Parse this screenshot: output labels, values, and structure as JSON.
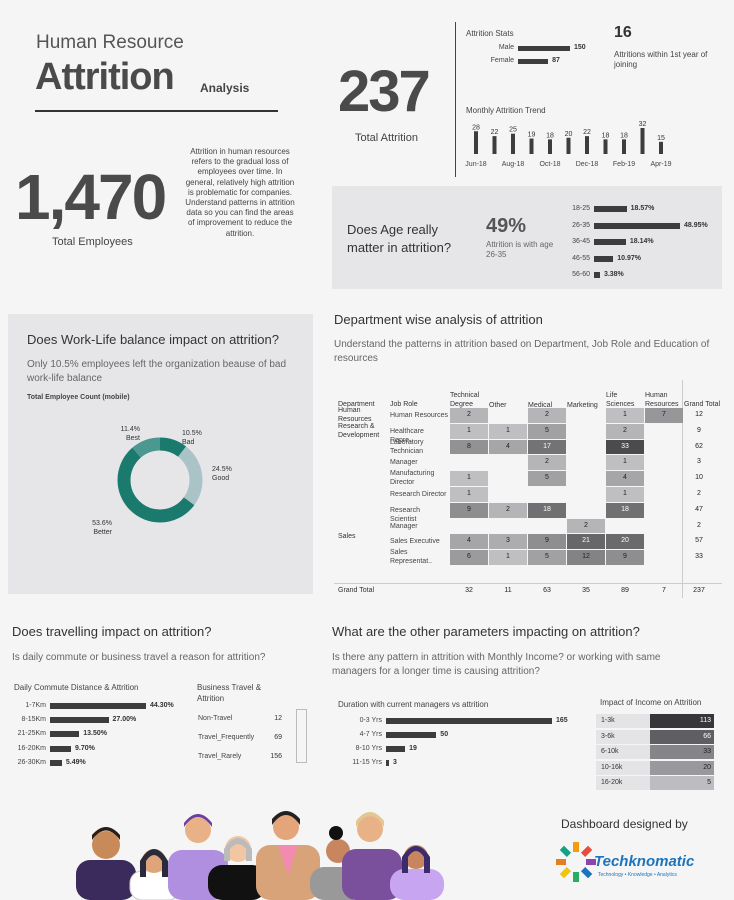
{
  "header": {
    "line1": "Human Resource",
    "line2": "Attrition",
    "line3": "Analysis"
  },
  "kpi": {
    "total_attrition_value": "237",
    "total_attrition_label": "Total Attrition",
    "total_employees_value": "1,470",
    "total_employees_label": "Total Employees",
    "first_year_value": "16",
    "first_year_label": "Attritions within 1st year of joining"
  },
  "intro": {
    "text": "Attrition in human resources refers to the gradual loss of employees over time. In general, relatively high attrition is problematic for companies. Understand patterns in attrition data so you can find the areas of improvement to reduce the attrition."
  },
  "age_panel": {
    "question": "Does Age really matter in attrition?",
    "pct": "49%",
    "pct_caption": "Attrition is with age 26-35"
  },
  "wlb": {
    "title": "Does Work-Life balance impact on attrition?",
    "subtitle": "Only 10.5% employees left the organization beause of bad work-life balance",
    "chart_caption": "Total Employee Count (mobile)"
  },
  "dept": {
    "title": "Department wise analysis of attrition",
    "subtitle": "Understand the patterns in attrition based on Department, Job Role and Education of resources",
    "col_department": "Department",
    "col_jobrole": "Job Role",
    "edu_headers": [
      "Technical Degree",
      "Other",
      "Medical",
      "Marketing",
      "Life Sciences",
      "Human Resources"
    ],
    "grand_total_label": "Grand Total",
    "departments": [
      {
        "name": "Human Resources",
        "row": 0
      },
      {
        "name": "Research & Development",
        "row": 1
      },
      {
        "name": "Sales",
        "row": 8
      }
    ],
    "rows": [
      {
        "role": "Human Resources",
        "cells": [
          2,
          null,
          2,
          null,
          1,
          7
        ],
        "total": 12
      },
      {
        "role": "Healthcare Repre..",
        "cells": [
          1,
          1,
          5,
          null,
          2,
          null
        ],
        "total": 9
      },
      {
        "role": "Laboratory Technician",
        "cells": [
          8,
          4,
          17,
          null,
          33,
          null
        ],
        "total": 62
      },
      {
        "role": "Manager",
        "cells": [
          null,
          null,
          2,
          null,
          1,
          null
        ],
        "total": 3
      },
      {
        "role": "Manufacturing Director",
        "cells": [
          1,
          null,
          5,
          null,
          4,
          null
        ],
        "total": 10
      },
      {
        "role": "Research Director",
        "cells": [
          1,
          null,
          null,
          null,
          1,
          null
        ],
        "total": 2
      },
      {
        "role": "Research Scientist",
        "cells": [
          9,
          2,
          18,
          null,
          18,
          null
        ],
        "total": 47
      },
      {
        "role": "Manager",
        "cells": [
          null,
          null,
          null,
          2,
          null,
          null
        ],
        "total": 2
      },
      {
        "role": "Sales Executive",
        "cells": [
          4,
          3,
          9,
          21,
          20,
          null
        ],
        "total": 57
      },
      {
        "role": "Sales Representat..",
        "cells": [
          6,
          1,
          5,
          12,
          9,
          null
        ],
        "total": 33
      }
    ],
    "grand_totals": [
      32,
      11,
      63,
      35,
      89,
      7
    ],
    "grand_total_all": 237
  },
  "travel": {
    "title": "Does travelling impact on attrition?",
    "subtitle": "Is daily commute or business travel a reason for attrition?",
    "commute_caption": "Daily Commute Distance & Attrition",
    "business_caption": "Business Travel & Attrition"
  },
  "other": {
    "title": "What are the other parameters impacting on attrition?",
    "subtitle": "Is there any pattern in attrition with Monthly Income? or working with same managers for a longer time is causing attrition?",
    "manager_caption": "Duration with current managers vs attrition",
    "income_caption": "Impact of Income on Attrition"
  },
  "footer": {
    "designed_by": "Dashboard designed by",
    "logo_text": "Techknomatic",
    "logo_tagline": "Technology • Knowledge • Analytics"
  },
  "colors": {
    "teal_dark": "#1a7a6e",
    "teal_mid": "#4b9890",
    "teal_light": "#a9c3c6",
    "bar_dark": "#3d3d3d",
    "logo_orange": "#f39c12",
    "logo_blue": "#1c75bc"
  },
  "chart_data": [
    {
      "type": "bar",
      "title": "Attrition Stats",
      "categories": [
        "Male",
        "Female"
      ],
      "values": [
        150,
        87
      ]
    },
    {
      "type": "bar",
      "title": "Monthly Attrition Trend",
      "categories": [
        "Jun-18",
        "Jul-18",
        "Aug-18",
        "Sep-18",
        "Oct-18",
        "Nov-18",
        "Dec-18",
        "Jan-19",
        "Feb-19",
        "Mar-19",
        "Apr-19"
      ],
      "tick_labels": [
        "Jun-18",
        "Aug-18",
        "Oct-18",
        "Dec-18",
        "Feb-19",
        "Apr-19"
      ],
      "values": [
        28,
        22,
        25,
        19,
        18,
        20,
        22,
        18,
        18,
        32,
        15
      ]
    },
    {
      "type": "bar",
      "title": "Age",
      "categories": [
        "18-25",
        "26-35",
        "36-45",
        "46-55",
        "56-60"
      ],
      "values": [
        18.57,
        48.95,
        18.14,
        10.97,
        3.38
      ],
      "value_labels": [
        "18.57%",
        "48.95%",
        "18.14%",
        "10.97%",
        "3.38%"
      ]
    },
    {
      "type": "pie",
      "title": "Total Employee Count (mobile)",
      "categories": [
        "Bad",
        "Good",
        "Better",
        "Best"
      ],
      "values": [
        10.5,
        24.5,
        53.6,
        11.4
      ],
      "value_labels": [
        "10.5%",
        "24.5%",
        "53.6%",
        "11.4%"
      ],
      "colors": [
        "#1a7a6e",
        "#a9c3c6",
        "#1a7a6e",
        "#4b9890"
      ]
    },
    {
      "type": "bar",
      "title": "Daily Commute Distance & Attrition",
      "categories": [
        "1-7Km",
        "8-15Km",
        "21-25Km",
        "16-20Km",
        "26-30Km"
      ],
      "values": [
        44.3,
        27.0,
        13.5,
        9.7,
        5.49
      ],
      "value_labels": [
        "44.30%",
        "27.00%",
        "13.50%",
        "9.70%",
        "5.49%"
      ]
    },
    {
      "type": "table",
      "title": "Business Travel & Attrition",
      "categories": [
        "Non-Travel",
        "Travel_Frequently",
        "Travel_Rarely"
      ],
      "values": [
        12,
        69,
        156
      ]
    },
    {
      "type": "bar",
      "title": "Duration with current managers vs attrition",
      "categories": [
        "0-3 Yrs",
        "4-7 Yrs",
        "8-10 Yrs",
        "11-15 Yrs"
      ],
      "values": [
        165,
        50,
        19,
        3
      ]
    },
    {
      "type": "heatmap",
      "title": "Impact of Income on Attrition",
      "categories": [
        "1-3k",
        "3-6k",
        "6-10k",
        "10-16k",
        "16-20k"
      ],
      "values": [
        113,
        66,
        33,
        20,
        5
      ]
    }
  ]
}
